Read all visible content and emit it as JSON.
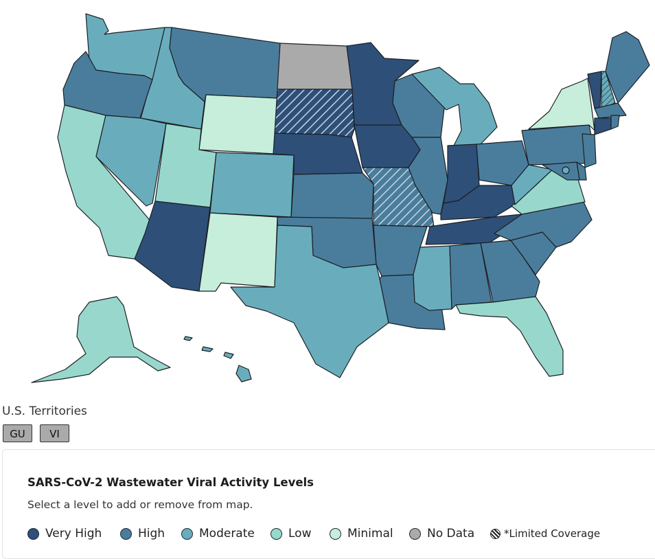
{
  "map": {
    "levels": {
      "very_high": "#2e4f78",
      "high": "#4a7d9c",
      "moderate": "#69adbd",
      "low": "#98d8cc",
      "minimal": "#c6eedb",
      "no_data": "#aaaaaa"
    },
    "states": [
      {
        "name": "WA",
        "level": "moderate"
      },
      {
        "name": "OR",
        "level": "high"
      },
      {
        "name": "CA",
        "level": "low"
      },
      {
        "name": "ID",
        "level": "moderate"
      },
      {
        "name": "NV",
        "level": "moderate"
      },
      {
        "name": "MT",
        "level": "high"
      },
      {
        "name": "WY",
        "level": "minimal"
      },
      {
        "name": "UT",
        "level": "low"
      },
      {
        "name": "AZ",
        "level": "very_high"
      },
      {
        "name": "CO",
        "level": "moderate"
      },
      {
        "name": "NM",
        "level": "minimal"
      },
      {
        "name": "ND",
        "level": "no_data"
      },
      {
        "name": "SD",
        "level": "very_high",
        "limited": true
      },
      {
        "name": "NE",
        "level": "very_high"
      },
      {
        "name": "KS",
        "level": "high"
      },
      {
        "name": "OK",
        "level": "high"
      },
      {
        "name": "TX",
        "level": "moderate"
      },
      {
        "name": "MN",
        "level": "very_high"
      },
      {
        "name": "IA",
        "level": "very_high"
      },
      {
        "name": "MO",
        "level": "high",
        "limited": true
      },
      {
        "name": "AR",
        "level": "high"
      },
      {
        "name": "LA",
        "level": "high"
      },
      {
        "name": "WI",
        "level": "high"
      },
      {
        "name": "IL",
        "level": "high"
      },
      {
        "name": "MI",
        "level": "moderate"
      },
      {
        "name": "IN",
        "level": "very_high"
      },
      {
        "name": "OH",
        "level": "high"
      },
      {
        "name": "KY",
        "level": "very_high"
      },
      {
        "name": "TN",
        "level": "very_high"
      },
      {
        "name": "MS",
        "level": "moderate"
      },
      {
        "name": "AL",
        "level": "high"
      },
      {
        "name": "GA",
        "level": "high"
      },
      {
        "name": "FL",
        "level": "low"
      },
      {
        "name": "SC",
        "level": "high"
      },
      {
        "name": "NC",
        "level": "high"
      },
      {
        "name": "VA",
        "level": "low"
      },
      {
        "name": "WV",
        "level": "moderate"
      },
      {
        "name": "PA",
        "level": "high"
      },
      {
        "name": "NY",
        "level": "minimal"
      },
      {
        "name": "VT",
        "level": "very_high"
      },
      {
        "name": "NH",
        "level": "moderate",
        "limited": true
      },
      {
        "name": "ME",
        "level": "high"
      },
      {
        "name": "MA",
        "level": "high"
      },
      {
        "name": "CT",
        "level": "very_high"
      },
      {
        "name": "RI",
        "level": "high"
      },
      {
        "name": "NJ",
        "level": "high"
      },
      {
        "name": "DE",
        "level": "high"
      },
      {
        "name": "MD",
        "level": "high"
      },
      {
        "name": "DC",
        "level": "moderate"
      },
      {
        "name": "AK",
        "level": "low"
      },
      {
        "name": "HI",
        "level": "moderate"
      }
    ]
  },
  "territories": {
    "title": "U.S. Territories",
    "buttons": [
      {
        "label": "GU",
        "level": "no_data"
      },
      {
        "label": "VI",
        "level": "no_data"
      }
    ]
  },
  "legend": {
    "title": "SARS-CoV-2 Wastewater Viral Activity Levels",
    "subtitle": "Select a level to add or remove from map.",
    "items": [
      {
        "label": "Very High",
        "color": "#2e4f78"
      },
      {
        "label": "High",
        "color": "#4a7d9c"
      },
      {
        "label": "Moderate",
        "color": "#69adbd"
      },
      {
        "label": "Low",
        "color": "#98d8cc"
      },
      {
        "label": "Minimal",
        "color": "#c6eedb"
      },
      {
        "label": "No Data",
        "color": "#aaaaaa"
      }
    ],
    "limited_coverage_label": "*Limited Coverage"
  }
}
